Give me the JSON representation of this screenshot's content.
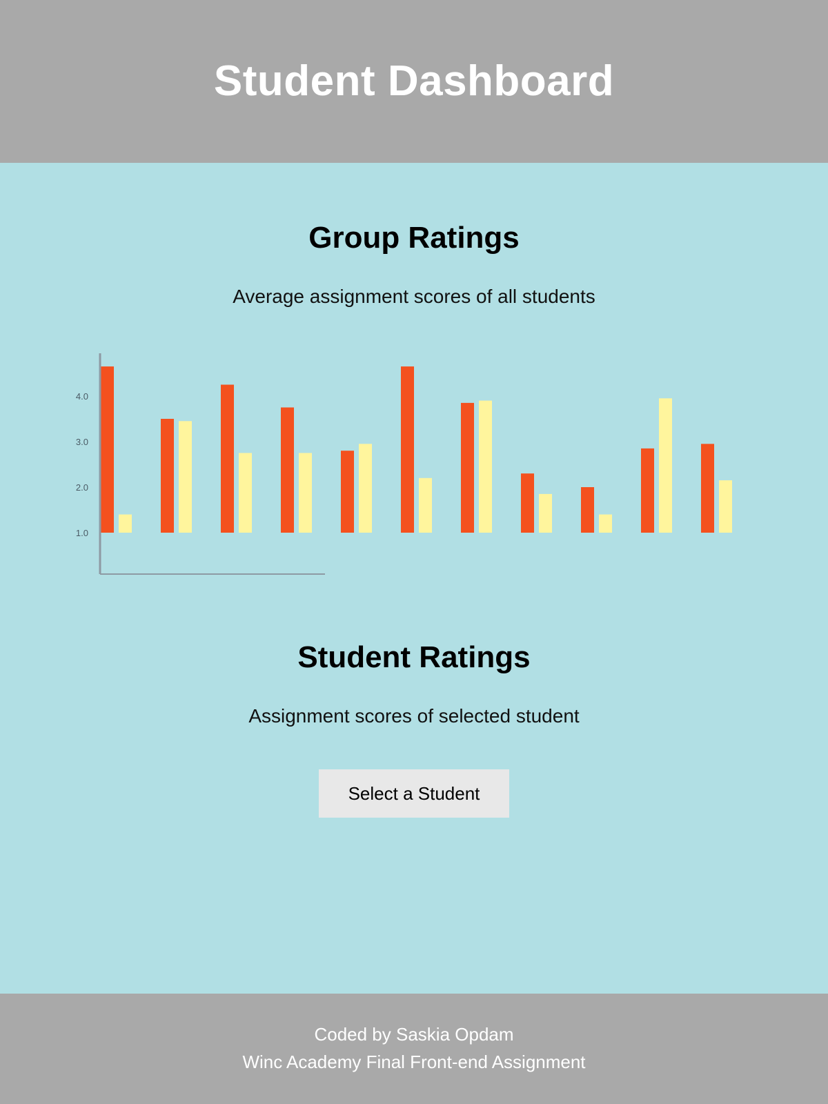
{
  "header": {
    "title": "Student Dashboard"
  },
  "group_section": {
    "title": "Group Ratings",
    "subtitle": "Average assignment scores of all students"
  },
  "student_section": {
    "title": "Student Ratings",
    "subtitle": "Assignment scores of selected student",
    "select_button_label": "Select a Student"
  },
  "footer": {
    "line1": "Coded by Saskia Opdam",
    "line2": "Winc Academy Final Front-end Assignment"
  },
  "colors": {
    "header_bg": "#a9a9a9",
    "main_bg": "#b1dfe4",
    "series_a": "#f4511e",
    "series_b": "#fff59d",
    "axis": "#8e9aa3"
  },
  "chart_data": {
    "type": "bar",
    "title": "",
    "xlabel": "",
    "ylabel": "",
    "ylim": [
      0,
      4.9
    ],
    "y_ticks": [
      "1.0",
      "2.0",
      "3.0",
      "4.0"
    ],
    "y_tick_values": [
      1.0,
      2.0,
      3.0,
      4.0
    ],
    "grid": false,
    "categories": [
      "",
      "",
      "",
      "",
      "",
      "",
      "",
      "",
      "",
      "",
      ""
    ],
    "series": [
      {
        "values": [
          4.65,
          3.5,
          4.25,
          3.75,
          2.8,
          4.65,
          3.85,
          2.3,
          2.0,
          2.85,
          2.95
        ]
      },
      {
        "values": [
          1.4,
          3.45,
          2.75,
          2.75,
          2.95,
          2.2,
          3.9,
          1.85,
          1.4,
          3.95,
          2.15
        ]
      }
    ]
  }
}
